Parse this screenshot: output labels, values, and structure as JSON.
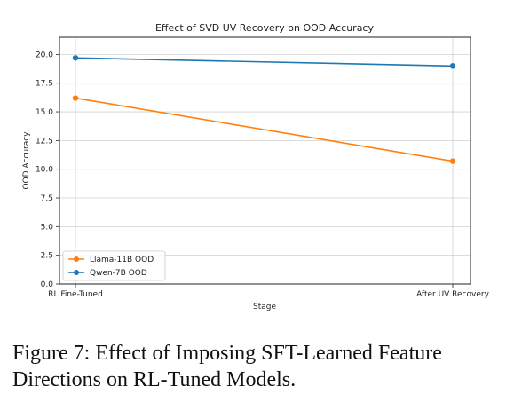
{
  "chart_data": {
    "type": "line",
    "title": "Effect of SVD UV Recovery on OOD Accuracy",
    "xlabel": "Stage",
    "ylabel": "OOD Accuracy",
    "categories": [
      "RL Fine-Tuned",
      "After UV Recovery"
    ],
    "ylim": [
      0,
      21.5
    ],
    "yticks": [
      "0.0",
      "2.5",
      "5.0",
      "7.5",
      "10.0",
      "12.5",
      "15.0",
      "17.5",
      "20.0"
    ],
    "grid": true,
    "legend_position": "lower-left",
    "series": [
      {
        "name": "Llama-11B OOD",
        "values": [
          16.2,
          10.7
        ],
        "color": "#ff7f0e"
      },
      {
        "name": "Qwen-7B OOD",
        "values": [
          19.7,
          19.0
        ],
        "color": "#1f77b4"
      }
    ]
  },
  "caption": {
    "text": "Figure 7: Effect of Imposing SFT-Learned Feature Directions on RL-Tuned Models."
  }
}
